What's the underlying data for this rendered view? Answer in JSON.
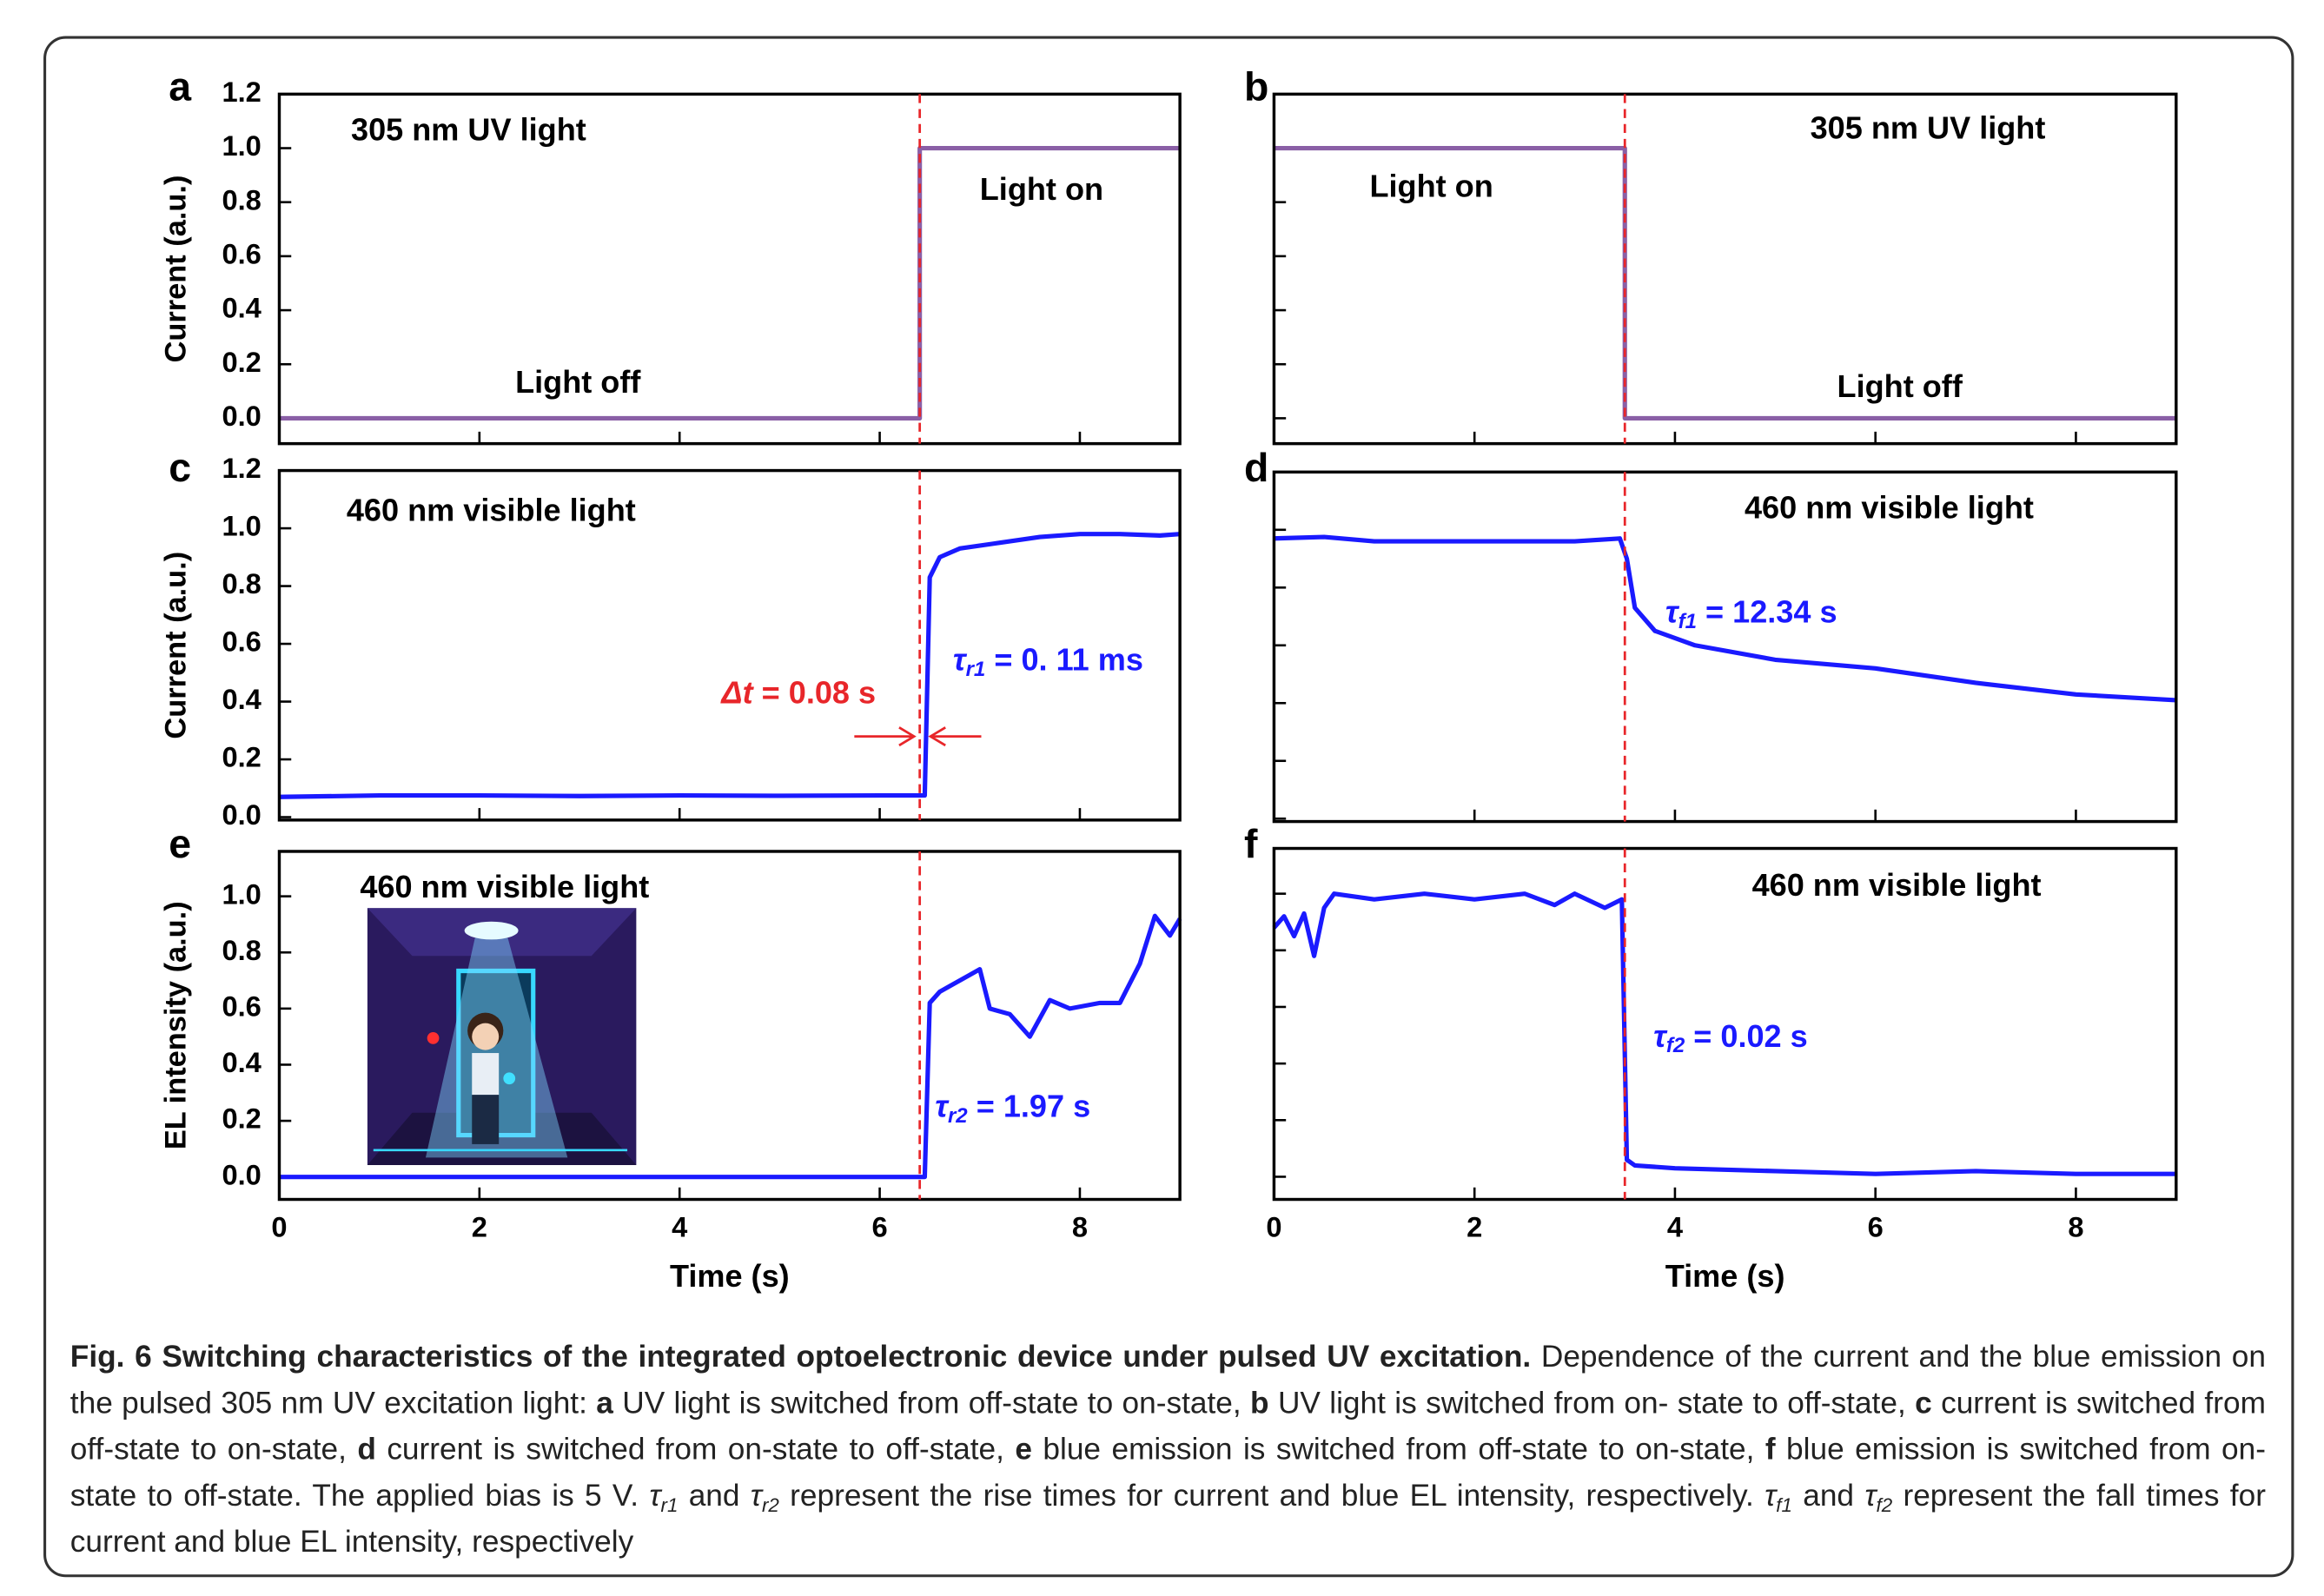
{
  "chart_data": [
    {
      "type": "line",
      "label": "a",
      "ylabel": "Current (a.u.)",
      "annotations": [
        {
          "text": "305 nm UV light",
          "color": "#000"
        },
        {
          "text": "Light on",
          "color": "#000"
        },
        {
          "text": "Light off",
          "color": "#000"
        }
      ],
      "series": [
        {
          "color": "#8a5fa6",
          "x": [
            0,
            6.4,
            6.4,
            9
          ],
          "values": [
            0,
            0,
            1,
            1
          ]
        }
      ],
      "vline": 6.4,
      "vline_color": "#e8262a",
      "xlim": [
        0,
        9
      ],
      "ylim": [
        -0.094,
        1.2
      ],
      "xticks": [
        0,
        2,
        4,
        6,
        8
      ],
      "xtick_labels": false,
      "yticks": [
        {
          "value": 0,
          "label": "0.0"
        },
        {
          "value": 0.2,
          "label": "0.2"
        },
        {
          "value": 0.4,
          "label": "0.4"
        },
        {
          "value": 0.6,
          "label": "0.6"
        },
        {
          "value": 0.8,
          "label": "0.8"
        },
        {
          "value": 1,
          "label": "1.0"
        },
        {
          "value": 1.2,
          "label": "1.2"
        }
      ],
      "ytick_labels": true
    },
    {
      "type": "line",
      "label": "b",
      "annotations": [
        {
          "text": "305 nm UV light",
          "color": "#000"
        },
        {
          "text": "Light on",
          "color": "#000"
        },
        {
          "text": "Light off",
          "color": "#000"
        }
      ],
      "series": [
        {
          "color": "#8a5fa6",
          "x": [
            0,
            3.5,
            3.5,
            9
          ],
          "values": [
            1,
            1,
            0,
            0
          ]
        }
      ],
      "vline": 3.5,
      "vline_color": "#e8262a",
      "xlim": [
        0,
        9
      ],
      "ylim": [
        -0.094,
        1.2
      ],
      "xticks": [
        0,
        2,
        4,
        6,
        8
      ],
      "xtick_labels": false,
      "yticks": [
        0,
        0.2,
        0.4,
        0.6,
        0.8,
        1,
        1.2
      ],
      "ytick_labels": false
    },
    {
      "type": "line",
      "label": "c",
      "ylabel": "Current (a.u.)",
      "annotations": [
        {
          "text": "460 nm visible light",
          "color": "#000"
        },
        {
          "symbol": "Δt",
          "text": " = 0.08 s",
          "color": "#e8262a"
        },
        {
          "symbol": "τ",
          "sub": "r1",
          "text": " = 0. 11 ms",
          "color": "#1a1aff"
        }
      ],
      "series": [
        {
          "color": "#1a1aff",
          "x": [
            0,
            1,
            2,
            3,
            4,
            5,
            6,
            6.45,
            6.5,
            6.6,
            6.8,
            7.2,
            7.6,
            8,
            8.4,
            8.8,
            9
          ],
          "values": [
            0.07,
            0.075,
            0.075,
            0.073,
            0.075,
            0.074,
            0.075,
            0.075,
            0.83,
            0.9,
            0.93,
            0.95,
            0.97,
            0.98,
            0.98,
            0.975,
            0.98
          ]
        }
      ],
      "vline": 6.4,
      "vline_color": "#e8262a",
      "xlim": [
        0,
        9
      ],
      "ylim": [
        -0.01,
        1.2
      ],
      "xticks": [
        0,
        2,
        4,
        6,
        8
      ],
      "xtick_labels": false,
      "yticks": [
        {
          "value": 0,
          "label": "0.0"
        },
        {
          "value": 0.2,
          "label": "0.2"
        },
        {
          "value": 0.4,
          "label": "0.4"
        },
        {
          "value": 0.6,
          "label": "0.6"
        },
        {
          "value": 0.8,
          "label": "0.8"
        },
        {
          "value": 1,
          "label": "1.0"
        },
        {
          "value": 1.2,
          "label": "1.2"
        }
      ],
      "ytick_labels": true
    },
    {
      "type": "line",
      "label": "d",
      "annotations": [
        {
          "text": "460 nm visible light",
          "color": "#000"
        },
        {
          "symbol": "τ",
          "sub": "f1",
          "text": " = 12.34 s",
          "color": "#1a1aff"
        }
      ],
      "series": [
        {
          "color": "#1a1aff",
          "x": [
            0,
            0.5,
            1,
            1.5,
            2,
            2.5,
            3,
            3.45,
            3.52,
            3.6,
            3.8,
            4.2,
            5,
            6,
            7,
            8,
            9
          ],
          "values": [
            0.97,
            0.975,
            0.96,
            0.96,
            0.96,
            0.96,
            0.96,
            0.97,
            0.9,
            0.73,
            0.65,
            0.6,
            0.55,
            0.52,
            0.47,
            0.43,
            0.41
          ]
        }
      ],
      "vline": 3.5,
      "vline_color": "#e8262a",
      "xlim": [
        0,
        9
      ],
      "ylim": [
        -0.01,
        1.2
      ],
      "xticks": [
        0,
        2,
        4,
        6,
        8
      ],
      "xtick_labels": false,
      "yticks": [
        0,
        0.2,
        0.4,
        0.6,
        0.8,
        1,
        1.2
      ],
      "ytick_labels": false
    },
    {
      "type": "line",
      "label": "e",
      "ylabel": "EL intensity (a.u.)",
      "xlabel": "Time (s)",
      "annotations": [
        {
          "text": "460 nm visible light",
          "color": "#000"
        },
        {
          "symbol": "τ",
          "sub": "r2",
          "text": " = 1.97 s",
          "color": "#1a1aff"
        }
      ],
      "series": [
        {
          "color": "#1a1aff",
          "x": [
            0,
            2,
            4,
            6,
            6.45,
            6.5,
            6.6,
            6.7,
            6.9,
            7.0,
            7.1,
            7.3,
            7.5,
            7.7,
            7.9,
            8.2,
            8.4,
            8.6,
            8.75,
            8.9,
            9
          ],
          "values": [
            0,
            0,
            0,
            0,
            0,
            0.62,
            0.66,
            0.68,
            0.72,
            0.74,
            0.6,
            0.58,
            0.5,
            0.63,
            0.6,
            0.62,
            0.62,
            0.76,
            0.93,
            0.86,
            0.92
          ]
        }
      ],
      "vline": 6.4,
      "vline_color": "#e8262a",
      "xlim": [
        0,
        9
      ],
      "ylim": [
        -0.08,
        1.16
      ],
      "xticks": [
        0,
        2,
        4,
        6,
        8
      ],
      "xtick_labels": true,
      "yticks": [
        {
          "value": 0,
          "label": "0.0"
        },
        {
          "value": 0.2,
          "label": "0.2"
        },
        {
          "value": 0.4,
          "label": "0.4"
        },
        {
          "value": 0.6,
          "label": "0.6"
        },
        {
          "value": 0.8,
          "label": "0.8"
        },
        {
          "value": 1,
          "label": "1.0"
        }
      ],
      "ytick_labels": true
    },
    {
      "type": "line",
      "label": "f",
      "xlabel": "Time (s)",
      "annotations": [
        {
          "text": "460 nm visible light",
          "color": "#000"
        },
        {
          "symbol": "τ",
          "sub": "f2",
          "text": " = 0.02 s",
          "color": "#1a1aff"
        }
      ],
      "series": [
        {
          "color": "#1a1aff",
          "x": [
            0,
            0.1,
            0.2,
            0.3,
            0.4,
            0.5,
            0.6,
            1,
            1.5,
            2,
            2.5,
            2.8,
            3,
            3.3,
            3.47,
            3.52,
            3.6,
            4,
            5,
            6,
            7,
            8,
            9
          ],
          "values": [
            0.88,
            0.92,
            0.85,
            0.93,
            0.78,
            0.95,
            1,
            0.98,
            1,
            0.98,
            1,
            0.96,
            1,
            0.95,
            0.98,
            0.06,
            0.04,
            0.03,
            0.02,
            0.01,
            0.02,
            0.01,
            0.01
          ]
        }
      ],
      "vline": 3.5,
      "vline_color": "#e8262a",
      "xlim": [
        0,
        9
      ],
      "ylim": [
        -0.08,
        1.16
      ],
      "xticks": [
        0,
        2,
        4,
        6,
        8
      ],
      "xtick_labels": true,
      "yticks": [
        0,
        0.2,
        0.4,
        0.6,
        0.8,
        1
      ],
      "ytick_labels": false
    }
  ],
  "caption": {
    "title": "Fig. 6 Switching characteristics of the integrated optoelectronic device under pulsed UV excitation.",
    "runs": [
      {
        "text": " Dependence of the current and the blue emission on the pulsed 305 nm UV excitation light: "
      },
      {
        "text": "a",
        "style": "bold"
      },
      {
        "text": " UV light is switched from off-state to on-state, "
      },
      {
        "text": "b",
        "style": "bold"
      },
      {
        "text": " UV light is switched from on- state to off-state, "
      },
      {
        "text": "c",
        "style": "bold"
      },
      {
        "text": " current is switched from off-state to on-state, "
      },
      {
        "text": "d",
        "style": "bold"
      },
      {
        "text": " current is switched from on-state to off-state, "
      },
      {
        "text": "e",
        "style": "bold"
      },
      {
        "text": " blue emission is switched from off-state to on-state, "
      },
      {
        "text": "f",
        "style": "bold"
      },
      {
        "text": " blue emission is switched from on-state to off-state. The applied bias is 5 V. "
      },
      {
        "text": "τ",
        "style": "italic"
      },
      {
        "text": "r1",
        "style": "sub"
      },
      {
        "text": " and "
      },
      {
        "text": "τ",
        "style": "italic"
      },
      {
        "text": "r2",
        "style": "sub"
      },
      {
        "text": " represent the rise times for current and blue EL intensity, respectively. "
      },
      {
        "text": "τ",
        "style": "italic"
      },
      {
        "text": "f1",
        "style": "sub"
      },
      {
        "text": " and "
      },
      {
        "text": "τ",
        "style": "italic"
      },
      {
        "text": "f2",
        "style": "sub"
      },
      {
        "text": " represent the fall times for current and blue EL intensity, respectively"
      }
    ]
  }
}
